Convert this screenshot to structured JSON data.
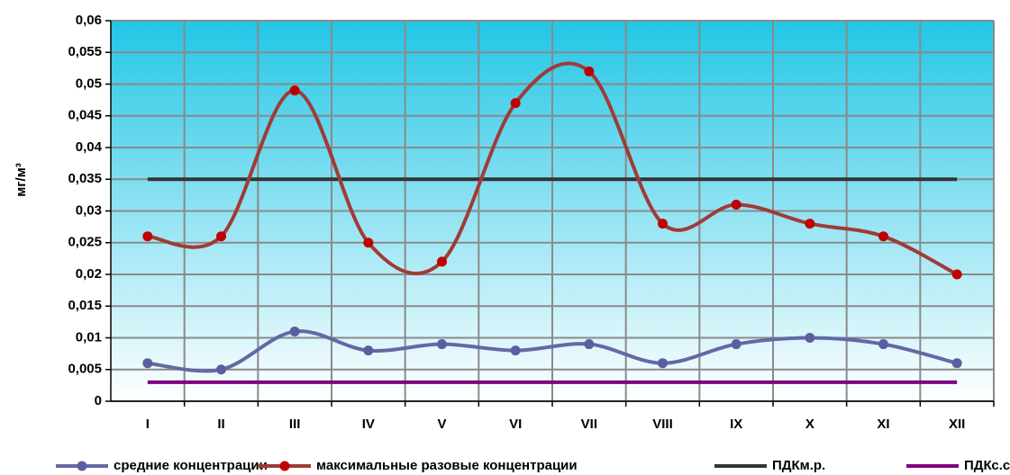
{
  "chart_data": {
    "type": "line",
    "y_label": "мг/м³",
    "categories": [
      "I",
      "II",
      "III",
      "IV",
      "V",
      "VI",
      "VII",
      "VIII",
      "IX",
      "X",
      "XI",
      "XII"
    ],
    "series": [
      {
        "name": "средние концентрации",
        "color": "#6468a4",
        "marker_color": "#5b5f9e",
        "marker": true,
        "values": [
          0.006,
          0.005,
          0.011,
          0.008,
          0.009,
          0.008,
          0.009,
          0.006,
          0.009,
          0.01,
          0.009,
          0.006
        ]
      },
      {
        "name": "максимальные разовые концентрации",
        "color": "#a03b36",
        "marker_color": "#c00000",
        "marker": true,
        "values": [
          0.026,
          0.026,
          0.049,
          0.025,
          0.022,
          0.047,
          0.052,
          0.028,
          0.031,
          0.028,
          0.026,
          0.02
        ]
      },
      {
        "name": "ПДКм.р.",
        "color": "#333333",
        "marker": false,
        "values": [
          0.035,
          0.035,
          0.035,
          0.035,
          0.035,
          0.035,
          0.035,
          0.035,
          0.035,
          0.035,
          0.035,
          0.035
        ]
      },
      {
        "name": "ПДКс.с.",
        "color": "#800080",
        "marker": false,
        "values": [
          0.003,
          0.003,
          0.003,
          0.003,
          0.003,
          0.003,
          0.003,
          0.003,
          0.003,
          0.003,
          0.003,
          0.003
        ]
      }
    ],
    "ylim": [
      0,
      0.06
    ],
    "yticks": [
      0,
      {
        "value": 0.005,
        "label": "0,005"
      },
      {
        "value": 0.01,
        "label": "0,01"
      },
      {
        "value": 0.015,
        "label": "0,015"
      },
      {
        "value": 0.02,
        "label": "0,02"
      },
      {
        "value": 0.025,
        "label": "0,025"
      },
      {
        "value": 0.03,
        "label": "0,03"
      },
      {
        "value": 0.035,
        "label": "0,035"
      },
      {
        "value": 0.04,
        "label": "0,04"
      },
      {
        "value": 0.045,
        "label": "0,045"
      },
      {
        "value": 0.05,
        "label": "0,05"
      },
      {
        "value": 0.055,
        "label": "0,055"
      },
      {
        "value": 0.06,
        "label": "0,06"
      }
    ],
    "grid": true,
    "smooth": true,
    "legend": "bottom"
  }
}
